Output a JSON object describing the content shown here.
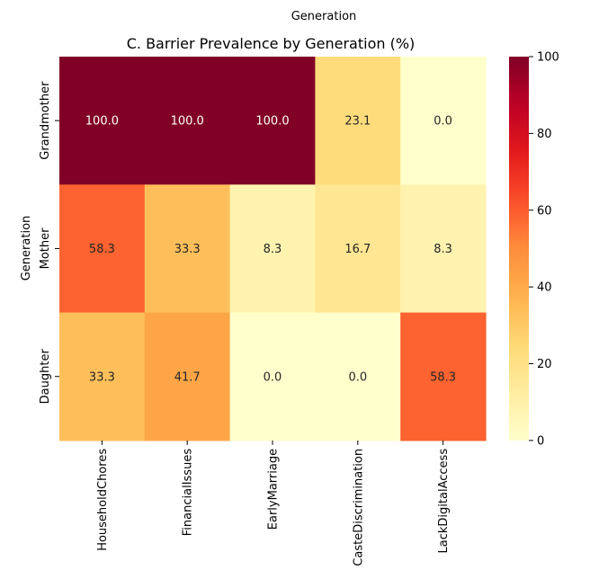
{
  "top_label": "Generation",
  "chart_data": {
    "type": "heatmap",
    "title": "C. Barrier Prevalence by Generation (%)",
    "ylabel": "Generation",
    "xlabel": "",
    "rows": [
      "Grandmother",
      "Mother",
      "Daughter"
    ],
    "columns": [
      "HouseholdChores",
      "FinancialIssues",
      "EarlyMarriage",
      "CasteDiscrimination",
      "LackDigitalAccess"
    ],
    "values": [
      [
        100.0,
        100.0,
        100.0,
        23.1,
        0.0
      ],
      [
        58.3,
        33.3,
        8.3,
        16.7,
        8.3
      ],
      [
        33.3,
        41.7,
        0.0,
        0.0,
        58.3
      ]
    ],
    "value_format": "0.0",
    "colormap": "YlOrRd",
    "vmin": 0,
    "vmax": 100,
    "colorbar_ticks": [
      0,
      20,
      40,
      60,
      80,
      100
    ]
  }
}
